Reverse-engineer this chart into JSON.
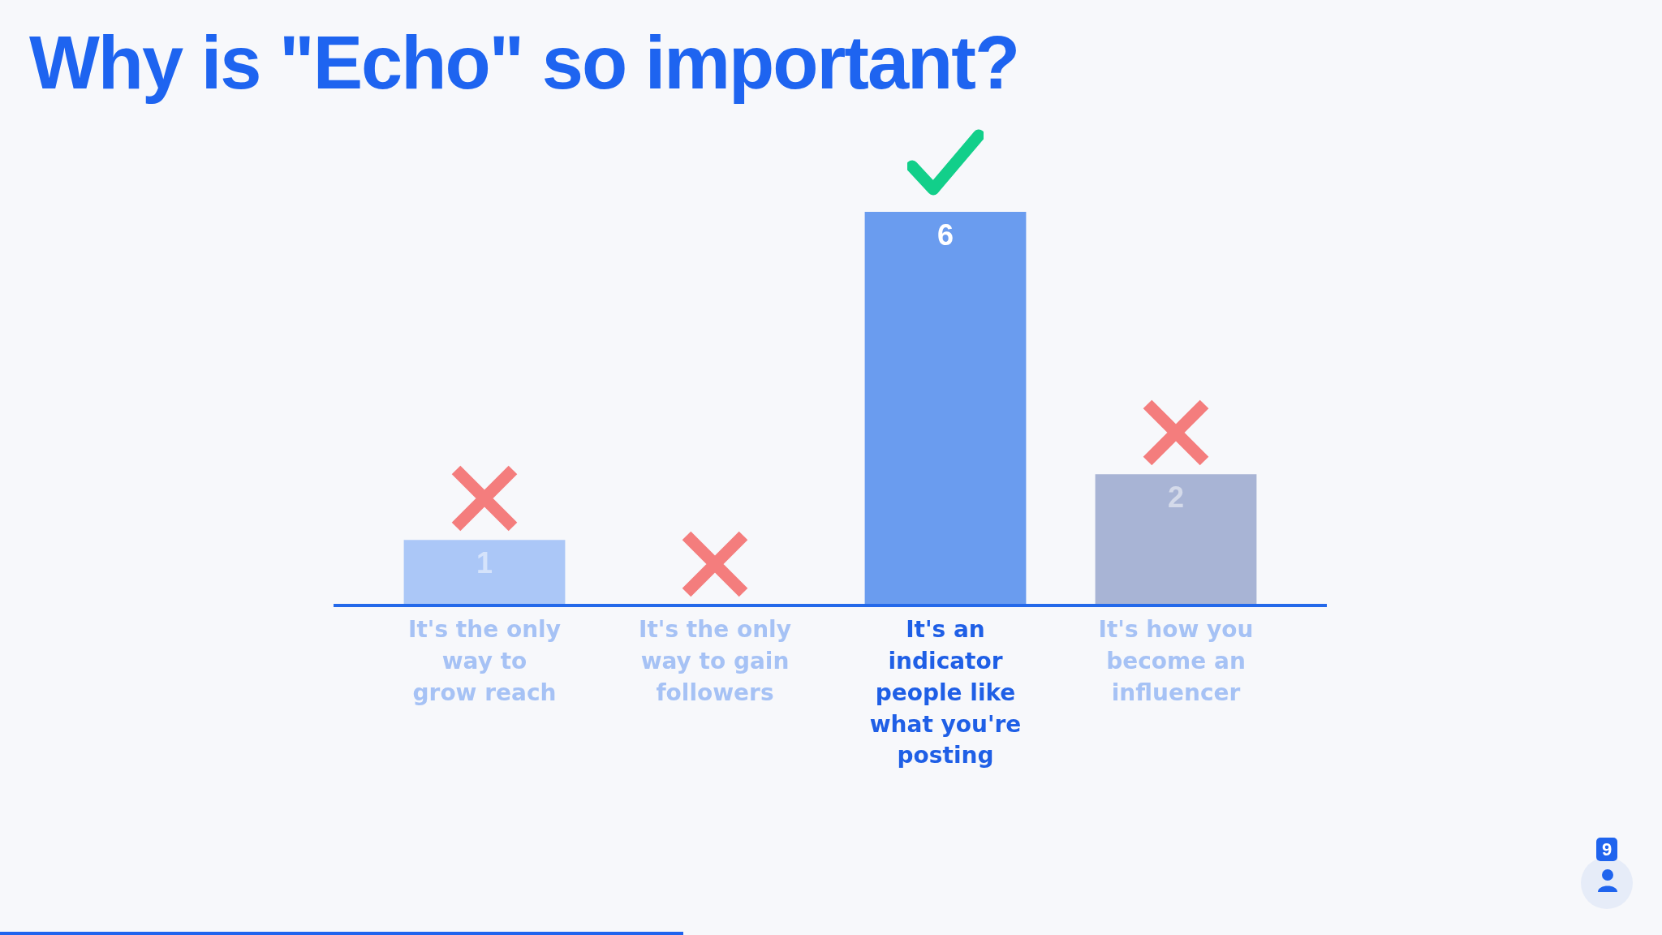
{
  "chart_data": {
    "type": "bar",
    "title": "Why is \"Echo\" so important?",
    "categories": [
      "It's the only way to grow reach",
      "It's the only way to gain followers",
      "It's an indicator people like what you're posting",
      "It's how you become an influencer"
    ],
    "values": [
      1,
      0,
      6,
      2
    ],
    "colors": [
      "#abc7f7",
      "#abc7f7",
      "#6a9cef",
      "#a8b4d5"
    ],
    "value_labels": [
      "1",
      null,
      "6",
      "2"
    ],
    "tick_labels": "x",
    "grid": false,
    "legend": false,
    "annotations": [
      "9"
    ]
  }
}
